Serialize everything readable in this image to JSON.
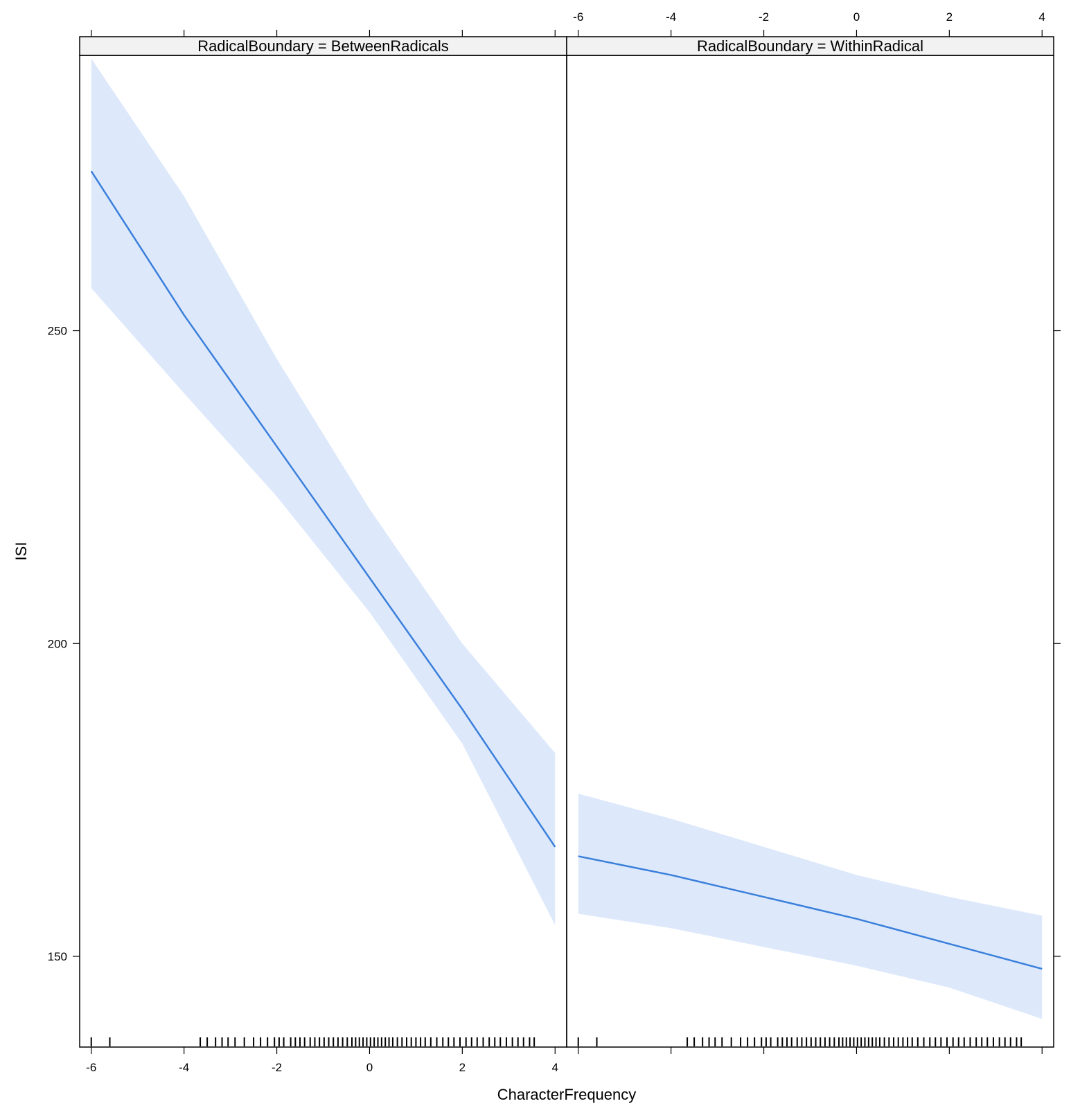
{
  "chart_data": {
    "type": "line",
    "xlabel": "CharacterFrequency",
    "ylabel": "ISI",
    "xlim": [
      -6.25,
      4.25
    ],
    "ylim": [
      135.5,
      294
    ],
    "x_ticks": [
      -6,
      -4,
      -2,
      0,
      2,
      4
    ],
    "y_ticks": [
      150,
      200,
      250
    ],
    "band_color": "#dde9fb",
    "line_color": "#3a7fdb",
    "panels": [
      {
        "strip": "RadicalBoundary = BetweenRadicals",
        "series": [
          {
            "x": [
              -6,
              -4,
              -2,
              0,
              2,
              4
            ],
            "fit": [
              275.5,
              252.5,
              231.5,
              210.5,
              189.5,
              167.5
            ],
            "lower": [
              256.8,
              240.0,
              223.5,
              205.0,
              184.0,
              155.0
            ],
            "upper": [
              293.5,
              271.5,
              245.5,
              221.5,
              200.0,
              182.5
            ]
          }
        ],
        "rug": [
          -6.0,
          -5.6,
          -3.65,
          -3.5,
          -3.32,
          -3.18,
          -3.05,
          -2.9,
          -2.7,
          -2.5,
          -2.35,
          -2.2,
          -2.05,
          -1.95,
          -1.85,
          -1.7,
          -1.6,
          -1.5,
          -1.4,
          -1.28,
          -1.18,
          -1.08,
          -0.98,
          -0.88,
          -0.78,
          -0.68,
          -0.58,
          -0.48,
          -0.38,
          -0.3,
          -0.22,
          -0.14,
          -0.06,
          0.02,
          0.1,
          0.18,
          0.26,
          0.34,
          0.42,
          0.5,
          0.6,
          0.7,
          0.8,
          0.9,
          1.0,
          1.1,
          1.2,
          1.32,
          1.45,
          1.58,
          1.7,
          1.82,
          1.95,
          2.08,
          2.2,
          2.32,
          2.45,
          2.58,
          2.7,
          2.82,
          2.95,
          3.08,
          3.2,
          3.32,
          3.45,
          3.55
        ]
      },
      {
        "strip": "RadicalBoundary = WithinRadical",
        "series": [
          {
            "x": [
              -6,
              -4,
              -2,
              0,
              2,
              4
            ],
            "fit": [
              166.0,
              163.0,
              159.5,
              156.0,
              152.0,
              148.0
            ],
            "lower": [
              156.8,
              154.5,
              151.5,
              148.5,
              145.0,
              140.0
            ],
            "upper": [
              176.0,
              172.0,
              167.5,
              163.0,
              159.5,
              156.5
            ]
          }
        ],
        "rug": [
          -6.0,
          -5.6,
          -3.65,
          -3.5,
          -3.32,
          -3.18,
          -3.05,
          -2.9,
          -2.7,
          -2.5,
          -2.35,
          -2.2,
          -2.05,
          -1.95,
          -1.85,
          -1.7,
          -1.6,
          -1.5,
          -1.4,
          -1.28,
          -1.18,
          -1.08,
          -0.98,
          -0.88,
          -0.78,
          -0.68,
          -0.58,
          -0.48,
          -0.38,
          -0.3,
          -0.22,
          -0.14,
          -0.06,
          0.02,
          0.1,
          0.18,
          0.26,
          0.34,
          0.42,
          0.5,
          0.6,
          0.7,
          0.8,
          0.9,
          1.0,
          1.1,
          1.2,
          1.32,
          1.45,
          1.58,
          1.7,
          1.82,
          1.95,
          2.08,
          2.2,
          2.32,
          2.45,
          2.58,
          2.7,
          2.82,
          2.95,
          3.08,
          3.2,
          3.32,
          3.45,
          3.55
        ]
      }
    ]
  }
}
